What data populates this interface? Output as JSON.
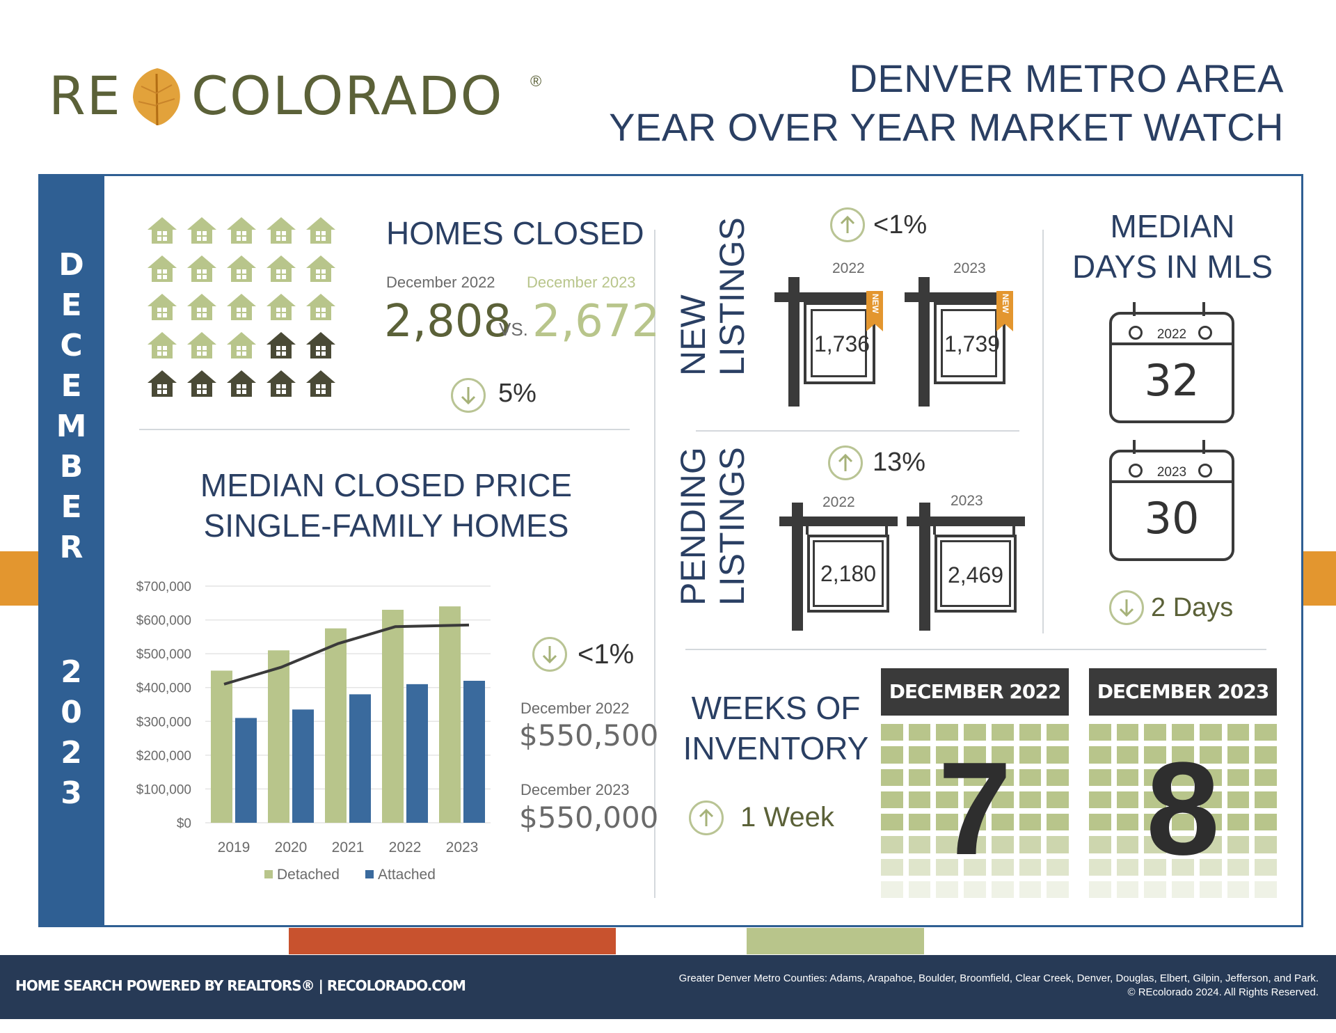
{
  "logo": {
    "left": "RE",
    "right": "COLORADO",
    "mark": "®"
  },
  "header": {
    "line1": "DENVER METRO AREA",
    "line2": "YEAR OVER YEAR MARKET WATCH"
  },
  "sidebar": {
    "month": "DECEMBER",
    "year": "2023"
  },
  "homes_closed": {
    "title": "HOMES CLOSED",
    "label_2022": "December 2022",
    "label_2023": "December 2023",
    "value_2022": "2,808",
    "vs": "VS.",
    "value_2023": "2,672",
    "change": "5%",
    "change_direction": "down",
    "dark_house_count": 7
  },
  "median_price": {
    "title_line1": "MEDIAN CLOSED PRICE",
    "title_line2": "SINGLE-FAMILY HOMES",
    "change": "<1%",
    "change_direction": "down",
    "label_2022": "December 2022",
    "value_2022": "$550,500",
    "label_2023": "December 2023",
    "value_2023": "$550,000"
  },
  "chart_data": {
    "type": "bar",
    "categories": [
      "2019",
      "2020",
      "2021",
      "2022",
      "2023"
    ],
    "series": [
      {
        "name": "Detached",
        "values": [
          450000,
          510000,
          575000,
          630000,
          640000
        ],
        "color": "#b8c58b"
      },
      {
        "name": "Attached",
        "values": [
          310000,
          335000,
          380000,
          410000,
          420000
        ],
        "color": "#3a6a9d"
      }
    ],
    "line": {
      "values": [
        410000,
        460000,
        530000,
        580000,
        585000
      ],
      "color": "#3a3a3a"
    },
    "ylim": [
      0,
      700000
    ],
    "yticks": [
      "$0",
      "$100,000",
      "$200,000",
      "$300,000",
      "$400,000",
      "$500,000",
      "$600,000",
      "$700,000"
    ],
    "ytick_values": [
      0,
      100000,
      200000,
      300000,
      400000,
      500000,
      600000,
      700000
    ],
    "legend_position": "bottom"
  },
  "new_listings": {
    "title_line1": "NEW",
    "title_line2": "LISTINGS",
    "change": "<1%",
    "change_direction": "up",
    "year_2022": "2022",
    "year_2023": "2023",
    "value_2022": "1,736",
    "value_2023": "1,739",
    "tag": "NEW"
  },
  "pending_listings": {
    "title_line1": "PENDING",
    "title_line2": "LISTINGS",
    "change": "13%",
    "change_direction": "up",
    "year_2022": "2022",
    "year_2023": "2023",
    "value_2022": "2,180",
    "value_2023": "2,469"
  },
  "days_in_mls": {
    "title_line1": "MEDIAN",
    "title_line2": "DAYS IN MLS",
    "year_2022": "2022",
    "value_2022": "32",
    "year_2023": "2023",
    "value_2023": "30",
    "change": "2 Days",
    "change_direction": "down"
  },
  "weeks_inventory": {
    "title_line1": "WEEKS OF",
    "title_line2": "INVENTORY",
    "change": "1 Week",
    "change_direction": "up",
    "header_2022": "DECEMBER 2022",
    "value_2022": "7",
    "header_2023": "DECEMBER 2023",
    "value_2023": "8"
  },
  "footer": {
    "left": "HOME SEARCH POWERED BY REALTORS® | RECOLORADO.COM",
    "right_line1": "Greater Denver Metro Counties: Adams, Arapahoe, Boulder, Broomfield, Clear Creek, Denver, Douglas, Elbert, Gilpin, Jefferson, and Park.",
    "right_line2": "© REcolorado 2024. All Rights Reserved."
  },
  "colors": {
    "navy": "#2f5f93",
    "green": "#b8c58b",
    "orange": "#e3962f",
    "red": "#c8522e",
    "dark": "#3a3a3a"
  }
}
